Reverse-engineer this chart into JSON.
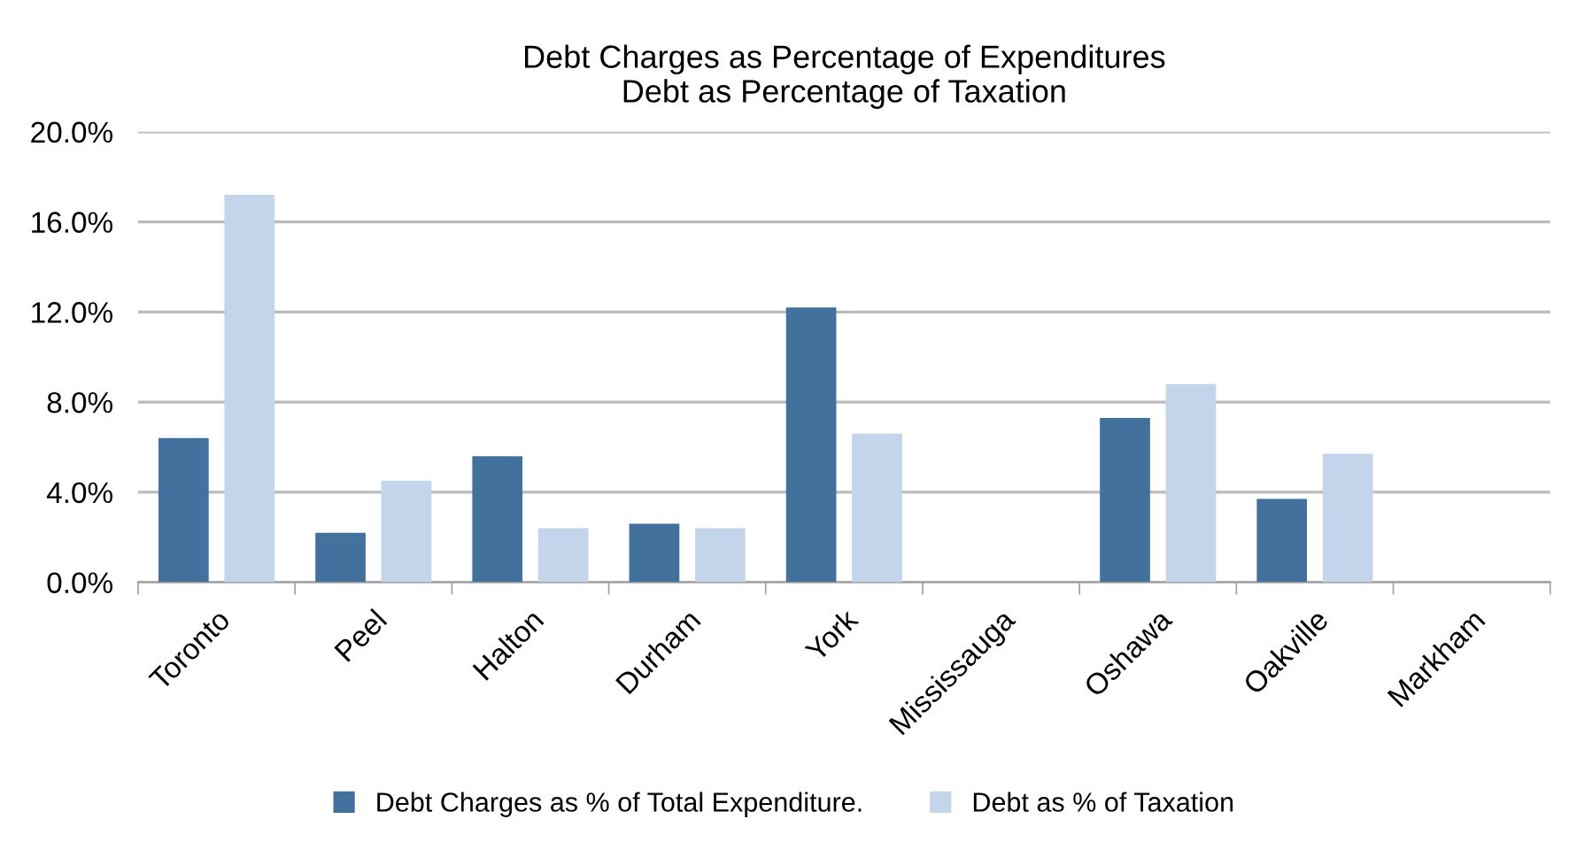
{
  "chart_data": {
    "type": "bar",
    "title": "Debt Charges as Percentage of Expenditures\nDebt as Percentage of Taxation",
    "categories": [
      "Toronto",
      "Peel",
      "Halton",
      "Durham",
      "York",
      "Mississauga",
      "Oshawa",
      "Oakville",
      "Markham"
    ],
    "series": [
      {
        "name": "Debt Charges as % of Total Expenditure.",
        "color": "#43719e",
        "values": [
          6.4,
          2.2,
          5.6,
          2.6,
          12.2,
          null,
          7.3,
          3.7,
          null
        ]
      },
      {
        "name": "Debt as % of Taxation",
        "color": "#c3d5ea",
        "values": [
          17.2,
          4.5,
          2.4,
          2.4,
          6.6,
          null,
          8.8,
          5.7,
          null
        ]
      }
    ],
    "ylim": [
      0,
      20
    ],
    "yticks": [
      {
        "value": 0,
        "label": "0.0%"
      },
      {
        "value": 4,
        "label": "4.0%"
      },
      {
        "value": 8,
        "label": "8.0%"
      },
      {
        "value": 12,
        "label": "12.0%"
      },
      {
        "value": 16,
        "label": "16.0%"
      },
      {
        "value": 20,
        "label": "20.0%"
      }
    ],
    "grid": "y",
    "legend": "bottom"
  }
}
